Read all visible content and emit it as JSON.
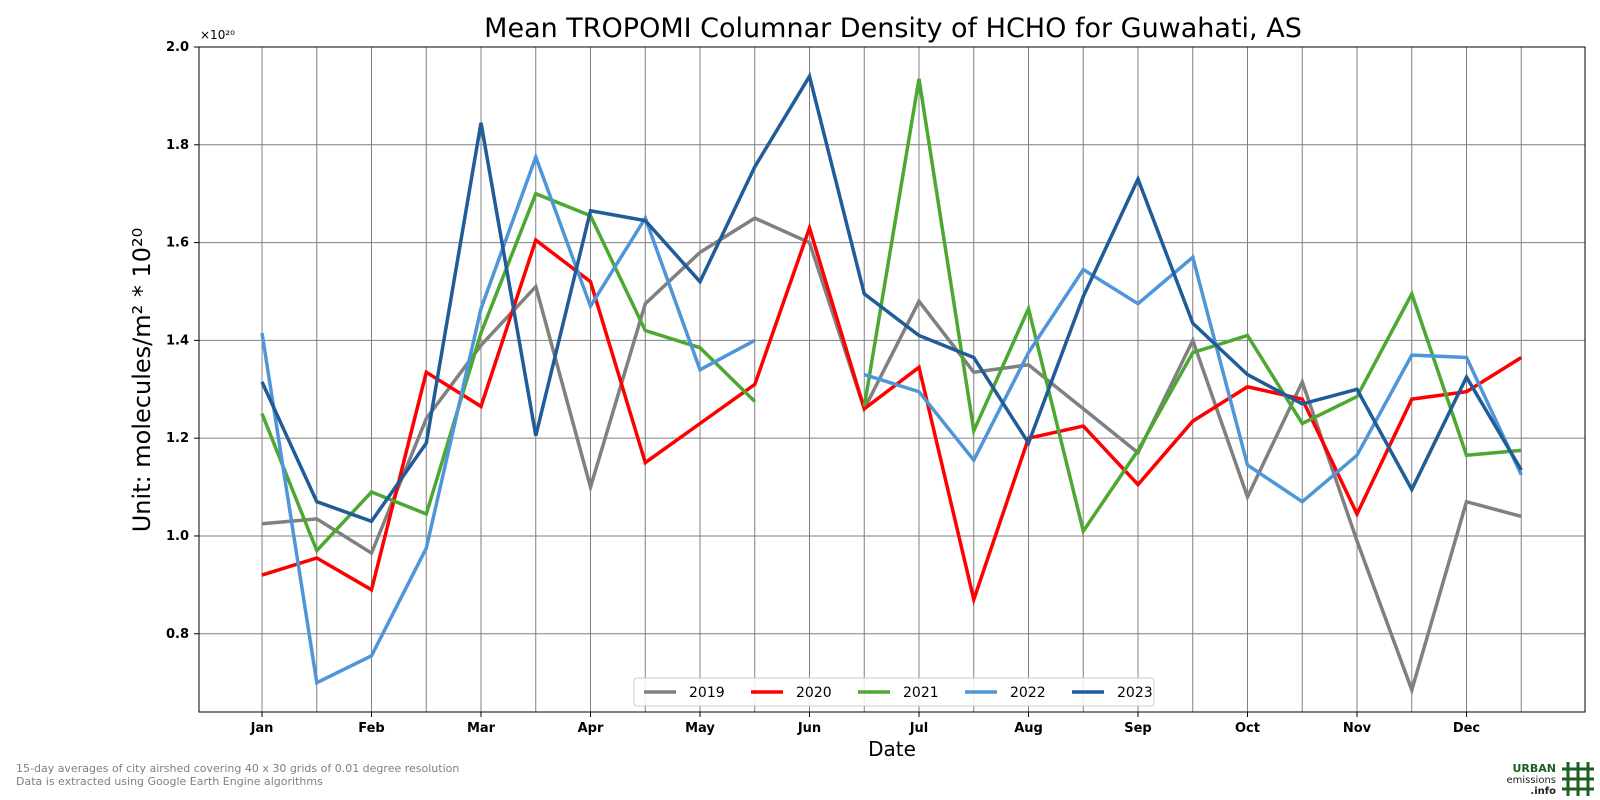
{
  "chart_data": {
    "type": "line",
    "title": "Mean TROPOMI Columnar Density of HCHO for Guwahati, AS",
    "xlabel": "Date",
    "ylabel": "Unit: molecules/m² * 10²⁰",
    "y_multiplier_label": "×10²⁰",
    "ylim": [
      0.64,
      2.0
    ],
    "yticks": [
      0.8,
      1.0,
      1.2,
      1.4,
      1.6,
      1.8,
      2.0
    ],
    "ytick_labels": [
      "0.8",
      "1.0",
      "1.2",
      "1.4",
      "1.6",
      "1.8",
      "2.0"
    ],
    "x_tick_labels": [
      "Jan",
      "Feb",
      "Mar",
      "Apr",
      "May",
      "Jun",
      "Jul",
      "Aug",
      "Sep",
      "Oct",
      "Nov",
      "Dec"
    ],
    "x": [
      "Jan 1",
      "Jan 16",
      "Feb 1",
      "Feb 16",
      "Mar 1",
      "Mar 16",
      "Apr 1",
      "Apr 16",
      "May 1",
      "May 16",
      "Jun 1",
      "Jun 16",
      "Jul 1",
      "Jul 16",
      "Aug 1",
      "Aug 16",
      "Sep 1",
      "Sep 16",
      "Oct 1",
      "Oct 16",
      "Nov 1",
      "Nov 16",
      "Dec 1",
      "Dec 16"
    ],
    "grid": true,
    "legend_position": "bottom-center",
    "series": [
      {
        "name": "2019",
        "color": "#808080",
        "values": [
          1.025,
          1.035,
          0.965,
          1.24,
          1.39,
          1.51,
          1.1,
          1.475,
          1.58,
          1.65,
          1.6,
          1.26,
          1.48,
          1.335,
          1.35,
          1.26,
          1.17,
          1.4,
          1.08,
          1.315,
          0.99,
          0.685,
          1.07,
          1.04
        ]
      },
      {
        "name": "2020",
        "color": "#ff0000",
        "values": [
          0.92,
          0.955,
          0.89,
          1.335,
          1.265,
          1.605,
          1.52,
          1.15,
          1.23,
          1.31,
          1.63,
          1.26,
          1.345,
          0.87,
          1.2,
          1.225,
          1.105,
          1.235,
          1.305,
          1.28,
          1.045,
          1.28,
          1.295,
          1.365
        ]
      },
      {
        "name": "2021",
        "color": "#4da832",
        "values": [
          1.25,
          0.97,
          1.09,
          1.045,
          1.415,
          1.7,
          1.655,
          1.42,
          1.385,
          1.275,
          null,
          1.265,
          1.935,
          1.215,
          1.465,
          1.01,
          1.175,
          1.375,
          1.41,
          1.23,
          1.285,
          1.495,
          1.165,
          1.175
        ]
      },
      {
        "name": "2022",
        "color": "#4e96d8",
        "values": [
          1.415,
          0.7,
          0.755,
          0.975,
          1.465,
          1.775,
          1.47,
          1.65,
          1.34,
          1.4,
          null,
          1.33,
          1.295,
          1.155,
          1.375,
          1.545,
          1.475,
          1.57,
          1.145,
          1.07,
          1.165,
          1.37,
          1.365,
          1.125
        ]
      },
      {
        "name": "2023",
        "color": "#1f5c99",
        "values": [
          1.315,
          1.07,
          1.03,
          1.19,
          1.845,
          1.205,
          1.665,
          1.645,
          1.52,
          1.755,
          1.94,
          1.495,
          1.41,
          1.365,
          1.19,
          1.49,
          1.73,
          1.435,
          1.33,
          1.27,
          1.3,
          1.095,
          1.325,
          1.135
        ]
      }
    ]
  },
  "footnotes": {
    "line1": "15-day averages of city airshed covering 40 x 30 grids of 0.01 degree resolution",
    "line2": "Data is extracted using Google Earth Engine algorithms"
  },
  "logo": {
    "word": "URBAN",
    "sub1": "emissions",
    "sub2": ".info",
    "color": "#1b5e20"
  }
}
